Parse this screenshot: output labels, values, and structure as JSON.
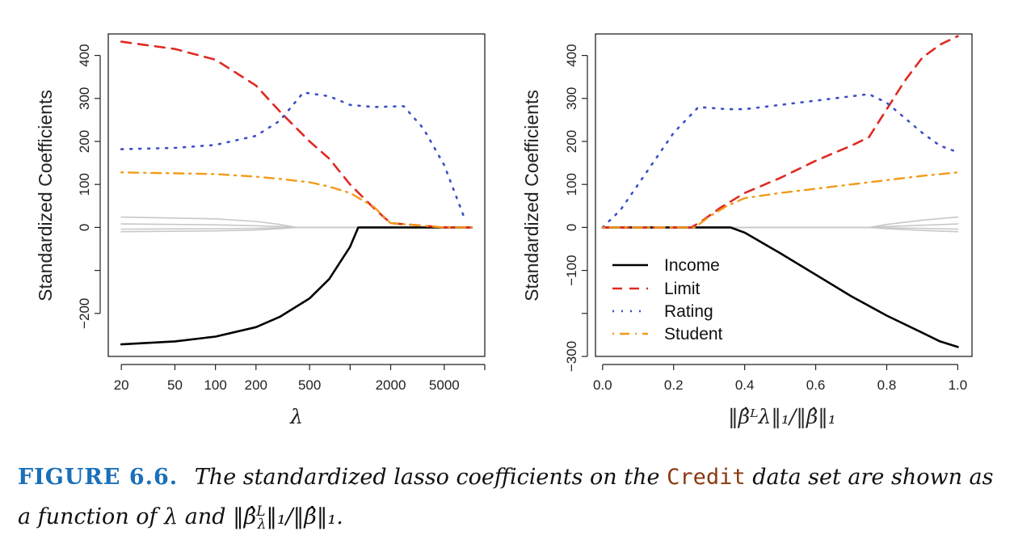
{
  "colors": {
    "Income": "#000000",
    "Limit": "#df2a23",
    "Rating": "#3b4fc4",
    "Student": "#f29a1a",
    "Other": "#c8c8c8",
    "caption_label": "#1a70b8",
    "caption_code": "#8a3a12"
  },
  "caption": {
    "label": "FIGURE 6.6.",
    "text_before": "The standardized lasso coefficients on the",
    "code": "Credit",
    "text_after": "data set are shown as a function of λ and ‖β̂",
    "text_sup": "L",
    "text_sub": "λ",
    "text_end": "‖₁/‖β̂‖₁."
  },
  "chart_data": [
    {
      "type": "line",
      "xlabel": "λ",
      "ylabel": "Standardized Coefficients",
      "x_scale": "log",
      "xlim": [
        16,
        10000
      ],
      "ylim": [
        -300,
        450
      ],
      "x_ticks": [
        20,
        50,
        100,
        200,
        500,
        2000,
        5000
      ],
      "x_tick_labels": [
        "20",
        "50",
        "100",
        "200",
        "500",
        "2000",
        "5000"
      ],
      "y_ticks": [
        -200,
        0,
        100,
        200,
        300,
        400
      ],
      "y_tick_labels": [
        "−200",
        "0",
        "100",
        "200",
        "300",
        "400"
      ],
      "grid": false,
      "series": [
        {
          "name": "Income",
          "style": "solid",
          "x": [
            20,
            50,
            100,
            200,
            300,
            500,
            700,
            1000,
            1150,
            2000,
            5000,
            8000
          ],
          "y": [
            -272,
            -265,
            -254,
            -232,
            -208,
            -165,
            -120,
            -45,
            0,
            0,
            0,
            0
          ]
        },
        {
          "name": "Limit",
          "style": "dashed",
          "x": [
            20,
            50,
            100,
            200,
            300,
            500,
            700,
            1000,
            1500,
            2000,
            5000,
            8000
          ],
          "y": [
            432,
            415,
            390,
            330,
            270,
            200,
            160,
            100,
            45,
            10,
            0,
            0
          ]
        },
        {
          "name": "Rating",
          "style": "dotted",
          "x": [
            20,
            50,
            100,
            200,
            300,
            450,
            700,
            1000,
            1500,
            2500,
            3500,
            5000,
            7000
          ],
          "y": [
            182,
            185,
            192,
            213,
            248,
            314,
            305,
            285,
            280,
            282,
            230,
            145,
            25
          ]
        },
        {
          "name": "Student",
          "style": "dotdash",
          "x": [
            20,
            50,
            100,
            200,
            300,
            500,
            700,
            1000,
            1500,
            2000,
            5000,
            8000
          ],
          "y": [
            128,
            126,
            124,
            118,
            113,
            105,
            95,
            80,
            48,
            10,
            0,
            0
          ]
        },
        {
          "style": "solid-gray",
          "x": [
            20,
            100,
            200,
            300,
            400,
            8000
          ],
          "y": [
            24,
            20,
            14,
            7,
            0,
            0
          ]
        },
        {
          "style": "solid-gray",
          "x": [
            20,
            100,
            200,
            300,
            400,
            8000
          ],
          "y": [
            8,
            6,
            4,
            2,
            0,
            0
          ]
        },
        {
          "style": "solid-gray",
          "x": [
            20,
            100,
            200,
            300,
            400,
            8000
          ],
          "y": [
            -4,
            -3,
            -2,
            -1,
            0,
            0
          ]
        },
        {
          "style": "solid-gray",
          "x": [
            20,
            100,
            200,
            300,
            400,
            8000
          ],
          "y": [
            -10,
            -8,
            -6,
            -3,
            0,
            0
          ]
        }
      ]
    },
    {
      "type": "line",
      "xlabel": "‖β̂ᴸλ‖₁/‖β̂‖₁",
      "ylabel": "Standardized Coefficients",
      "xlim": [
        -0.02,
        1.04
      ],
      "ylim": [
        -300,
        450
      ],
      "x_ticks": [
        0.0,
        0.2,
        0.4,
        0.6,
        0.8,
        1.0
      ],
      "x_tick_labels": [
        "0.0",
        "0.2",
        "0.4",
        "0.6",
        "0.8",
        "1.0"
      ],
      "y_ticks": [
        -300,
        -100,
        0,
        100,
        200,
        300,
        400
      ],
      "y_tick_labels": [
        "−300",
        "−100",
        "0",
        "100",
        "200",
        "300",
        "400"
      ],
      "grid": false,
      "legend": {
        "position": "bottom-left",
        "entries": [
          "Income",
          "Limit",
          "Rating",
          "Student"
        ]
      },
      "series": [
        {
          "name": "Income",
          "style": "solid",
          "x": [
            0.0,
            0.36,
            0.4,
            0.5,
            0.6,
            0.7,
            0.8,
            0.9,
            0.95,
            1.0
          ],
          "y": [
            0,
            0,
            -12,
            -60,
            -110,
            -160,
            -205,
            -245,
            -265,
            -278
          ]
        },
        {
          "name": "Limit",
          "style": "dashed",
          "x": [
            0.0,
            0.25,
            0.28,
            0.33,
            0.4,
            0.5,
            0.6,
            0.7,
            0.75,
            0.8,
            0.85,
            0.9,
            0.95,
            1.0
          ],
          "y": [
            0,
            0,
            15,
            45,
            80,
            115,
            155,
            190,
            210,
            275,
            340,
            395,
            425,
            445
          ]
        },
        {
          "name": "Rating",
          "style": "dotted",
          "x": [
            0.0,
            0.05,
            0.1,
            0.15,
            0.2,
            0.27,
            0.35,
            0.4,
            0.5,
            0.6,
            0.7,
            0.75,
            0.8,
            0.85,
            0.9,
            0.95,
            1.0
          ],
          "y": [
            0,
            40,
            100,
            160,
            220,
            280,
            275,
            275,
            285,
            295,
            305,
            310,
            290,
            255,
            220,
            190,
            175
          ]
        },
        {
          "name": "Student",
          "style": "dotdash",
          "x": [
            0.0,
            0.26,
            0.3,
            0.35,
            0.4,
            0.5,
            0.6,
            0.7,
            0.8,
            0.9,
            1.0
          ],
          "y": [
            0,
            0,
            25,
            50,
            68,
            80,
            90,
            100,
            110,
            120,
            128
          ]
        },
        {
          "style": "solid-gray",
          "x": [
            0.0,
            0.75,
            0.8,
            0.9,
            1.0
          ],
          "y": [
            0,
            0,
            7,
            17,
            24
          ]
        },
        {
          "style": "solid-gray",
          "x": [
            0.0,
            0.75,
            0.8,
            0.9,
            1.0
          ],
          "y": [
            0,
            0,
            2,
            5,
            8
          ]
        },
        {
          "style": "solid-gray",
          "x": [
            0.0,
            0.75,
            0.8,
            0.9,
            1.0
          ],
          "y": [
            0,
            0,
            -1,
            -2,
            -4
          ]
        },
        {
          "style": "solid-gray",
          "x": [
            0.0,
            0.75,
            0.8,
            0.9,
            1.0
          ],
          "y": [
            0,
            0,
            -3,
            -7,
            -10
          ]
        }
      ]
    }
  ]
}
